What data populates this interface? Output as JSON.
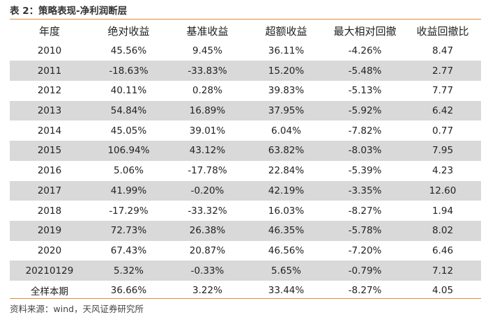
{
  "title": "表 2：策略表现-净利润断层",
  "table": {
    "headers": [
      "年度",
      "绝对收益",
      "基准收益",
      "超额收益",
      "最大相对回撤",
      "收益回撤比"
    ],
    "rows": [
      [
        "2010",
        "45.56%",
        "9.45%",
        "36.11%",
        "-4.26%",
        "8.47"
      ],
      [
        "2011",
        "-18.63%",
        "-33.83%",
        "15.20%",
        "-5.48%",
        "2.77"
      ],
      [
        "2012",
        "40.11%",
        "0.28%",
        "39.83%",
        "-5.13%",
        "7.77"
      ],
      [
        "2013",
        "54.84%",
        "16.89%",
        "37.95%",
        "-5.92%",
        "6.42"
      ],
      [
        "2014",
        "45.05%",
        "39.01%",
        "6.04%",
        "-7.82%",
        "0.77"
      ],
      [
        "2015",
        "106.94%",
        "43.12%",
        "63.82%",
        "-8.03%",
        "7.95"
      ],
      [
        "2016",
        "5.06%",
        "-17.78%",
        "22.84%",
        "-5.39%",
        "4.23"
      ],
      [
        "2017",
        "41.99%",
        "-0.20%",
        "42.19%",
        "-3.35%",
        "12.60"
      ],
      [
        "2018",
        "-17.29%",
        "-33.32%",
        "16.03%",
        "-8.27%",
        "1.94"
      ],
      [
        "2019",
        "72.73%",
        "26.38%",
        "46.35%",
        "-5.78%",
        "8.02"
      ],
      [
        "2020",
        "67.43%",
        "20.87%",
        "46.56%",
        "-7.20%",
        "6.46"
      ],
      [
        "20210129",
        "5.32%",
        "-0.33%",
        "5.65%",
        "-0.79%",
        "7.12"
      ],
      [
        "全样本期",
        "36.66%",
        "3.22%",
        "33.44%",
        "-8.27%",
        "4.05"
      ]
    ]
  },
  "source": "资料来源：wind，天风证券研究所",
  "colors": {
    "rule": "#e08a3c",
    "shade": "#d9d9d9"
  }
}
